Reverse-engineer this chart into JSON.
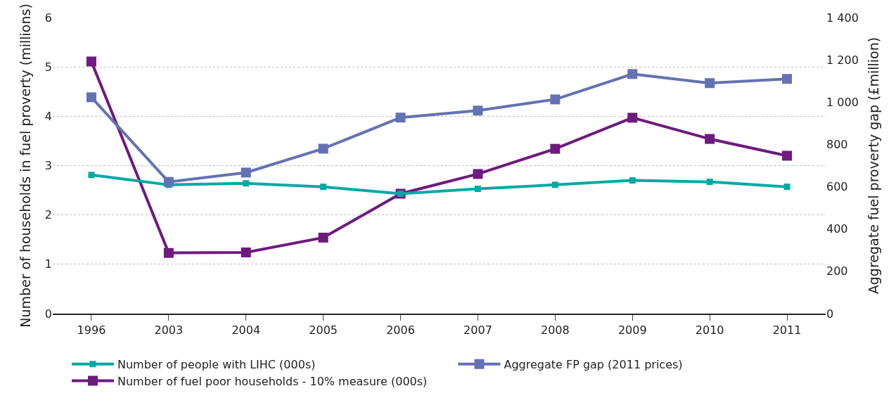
{
  "chart_data": {
    "type": "line",
    "categories": [
      "1996",
      "2003",
      "2004",
      "2005",
      "2006",
      "2007",
      "2008",
      "2009",
      "2010",
      "2011"
    ],
    "series": [
      {
        "name": "Number of people with LIHC (000s)",
        "color": "#00a9a5",
        "values": [
          2.81,
          2.61,
          2.64,
          2.57,
          2.43,
          2.53,
          2.61,
          2.7,
          2.67,
          2.57
        ]
      },
      {
        "name": "Aggregate FP gap (2011 prices)",
        "color": "#6471b3",
        "axis": "y2",
        "values": [
          1023,
          623,
          667,
          780,
          927,
          960,
          1013,
          1133,
          1090,
          1110
        ]
      },
      {
        "name": "Number of fuel poor households - 10% measure (000s)",
        "color": "#6e1a7e",
        "values": [
          5.11,
          1.23,
          1.24,
          1.54,
          2.43,
          2.83,
          3.34,
          3.97,
          3.54,
          3.2
        ]
      }
    ],
    "ylabel": "Number of households in fuel proverty (millions)",
    "y2label": "Aggregate fuel proverty gap (£million)",
    "ylim": [
      0,
      6
    ],
    "yticks": [
      0,
      1,
      2,
      3,
      4,
      5,
      6
    ],
    "y2lim": [
      0,
      1400
    ],
    "y2ticks": [
      0,
      200,
      400,
      600,
      800,
      {
        "value": 1000,
        "label": "1 000"
      },
      {
        "value": 1200,
        "label": "1 200"
      },
      {
        "value": 1400,
        "label": "1 400"
      }
    ],
    "grid": "y",
    "legend": "bottom",
    "marker": "square",
    "line_style": "solid"
  }
}
